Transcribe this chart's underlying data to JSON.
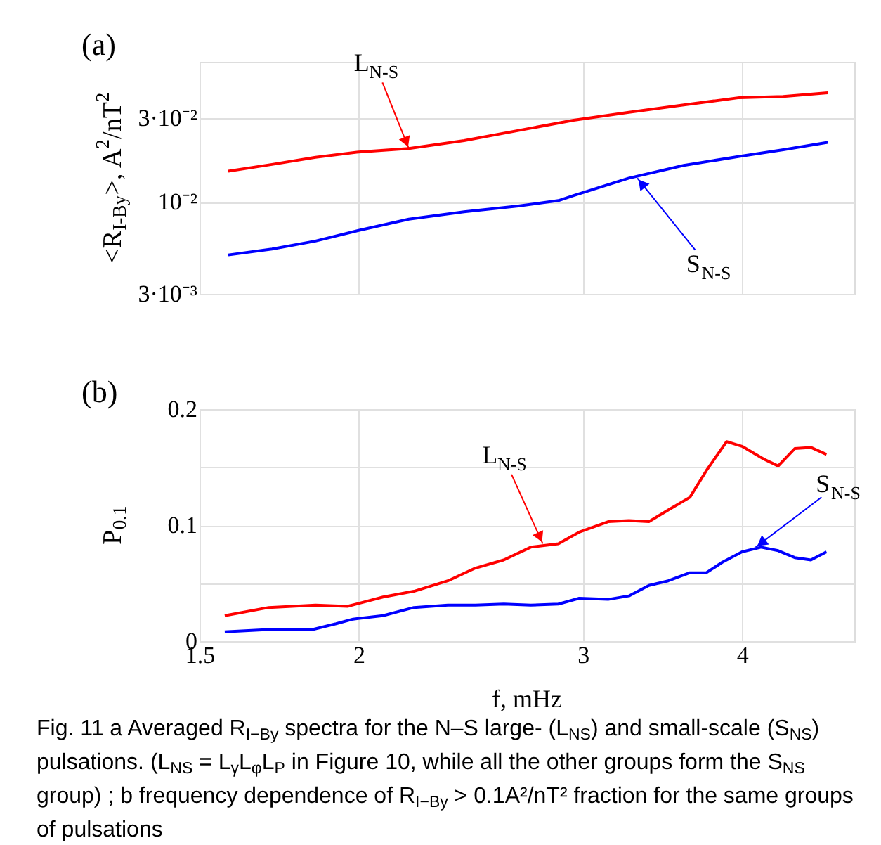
{
  "chart_data": [
    {
      "type": "line",
      "title": "(a)",
      "ylabel": "<R$_{I-By}$>, A$^{2}$/nT$^{2}$",
      "log": "xy",
      "grid": true,
      "tick_labels": "y",
      "xlim": [
        1.5,
        4.9
      ],
      "xticks": [
        1.5,
        2,
        3,
        4
      ],
      "ylim": [
        0.003,
        0.063
      ],
      "yticks": [
        {
          "value": 0.003,
          "label": "3·10⁻³"
        },
        {
          "value": 0.01,
          "label": "10⁻²"
        },
        {
          "value": 0.03,
          "label": "3·10⁻²"
        }
      ],
      "series": [
        {
          "color": "#ff0000",
          "x": [
            1.58,
            1.71,
            1.85,
            2.0,
            2.19,
            2.42,
            2.67,
            2.95,
            3.26,
            3.6,
            3.98,
            4.31,
            4.67
          ],
          "values": [
            0.015,
            0.0164,
            0.018,
            0.0193,
            0.0202,
            0.0224,
            0.0256,
            0.0293,
            0.0325,
            0.0358,
            0.0394,
            0.04,
            0.042
          ]
        },
        {
          "color": "#0000ff",
          "x": [
            1.58,
            1.71,
            1.85,
            2.0,
            2.19,
            2.42,
            2.67,
            2.87,
            2.95,
            3.26,
            3.6,
            3.98,
            4.31,
            4.67
          ],
          "values": [
            0.005,
            0.0054,
            0.006,
            0.0069,
            0.008,
            0.0088,
            0.0095,
            0.0102,
            0.0109,
            0.0137,
            0.0162,
            0.0182,
            0.0199,
            0.0219
          ]
        }
      ],
      "annotations": [
        {
          "text": "L$_{N-S}$",
          "x": 2.19,
          "y": 0.0202
        },
        {
          "text": "S$_{N-S}$",
          "x": 3.31,
          "y": 0.0137
        }
      ]
    },
    {
      "type": "line",
      "title": "(b)",
      "xlabel": "f, mHz",
      "ylabel": "P$_{0.1}$",
      "log": "x",
      "grid": true,
      "xlim": [
        1.5,
        4.9
      ],
      "xticks": [
        1.5,
        2,
        3,
        4
      ],
      "ylim": [
        0,
        0.2
      ],
      "yticks": [
        0,
        {
          "value": 0.05,
          "label": null
        },
        0.1,
        {
          "value": 0.15,
          "label": null
        },
        0.2
      ],
      "series": [
        {
          "color": "#ff0000",
          "x": [
            1.57,
            1.7,
            1.85,
            1.96,
            2.09,
            2.21,
            2.35,
            2.47,
            2.6,
            2.73,
            2.87,
            2.98,
            3.14,
            3.26,
            3.38,
            3.5,
            3.64,
            3.75,
            3.89,
            4.0,
            4.16,
            4.27,
            4.4,
            4.53,
            4.66
          ],
          "values": [
            0.022,
            0.029,
            0.031,
            0.03,
            0.038,
            0.043,
            0.052,
            0.063,
            0.07,
            0.081,
            0.084,
            0.094,
            0.103,
            0.104,
            0.103,
            0.113,
            0.124,
            0.147,
            0.172,
            0.168,
            0.157,
            0.151,
            0.166,
            0.167,
            0.161
          ]
        },
        {
          "color": "#0000ff",
          "x": [
            1.57,
            1.7,
            1.84,
            1.92,
            1.98,
            2.09,
            2.21,
            2.35,
            2.47,
            2.6,
            2.73,
            2.87,
            2.98,
            3.14,
            3.26,
            3.38,
            3.5,
            3.64,
            3.75,
            3.86,
            4.0,
            4.14,
            4.27,
            4.4,
            4.53,
            4.66
          ],
          "values": [
            0.008,
            0.01,
            0.01,
            0.015,
            0.019,
            0.022,
            0.029,
            0.031,
            0.031,
            0.032,
            0.031,
            0.032,
            0.037,
            0.036,
            0.039,
            0.048,
            0.052,
            0.059,
            0.059,
            0.068,
            0.077,
            0.081,
            0.078,
            0.072,
            0.07,
            0.077
          ]
        }
      ],
      "annotations": [
        {
          "text": "L$_{N-S}$",
          "x": 2.79,
          "y": 0.084
        },
        {
          "text": "S$_{N-S}$",
          "x": 4.1,
          "y": 0.081
        },
        "Fig. 11 a Averaged R$_{I−By}$ spectra for the N–S large- (L$_{NS}$) and small-scale (S$_{NS}$) pulsations. (L$_{NS}$ = L$_{γ}$L$_{φ}$L$_{P}$ in Figure 10, while all the other groups form the S$_{NS}$ group) ; b frequency dependence of R$_{I−By}$ > 0.1A²/nT² fraction for the same groups of pulsations"
      ]
    }
  ]
}
